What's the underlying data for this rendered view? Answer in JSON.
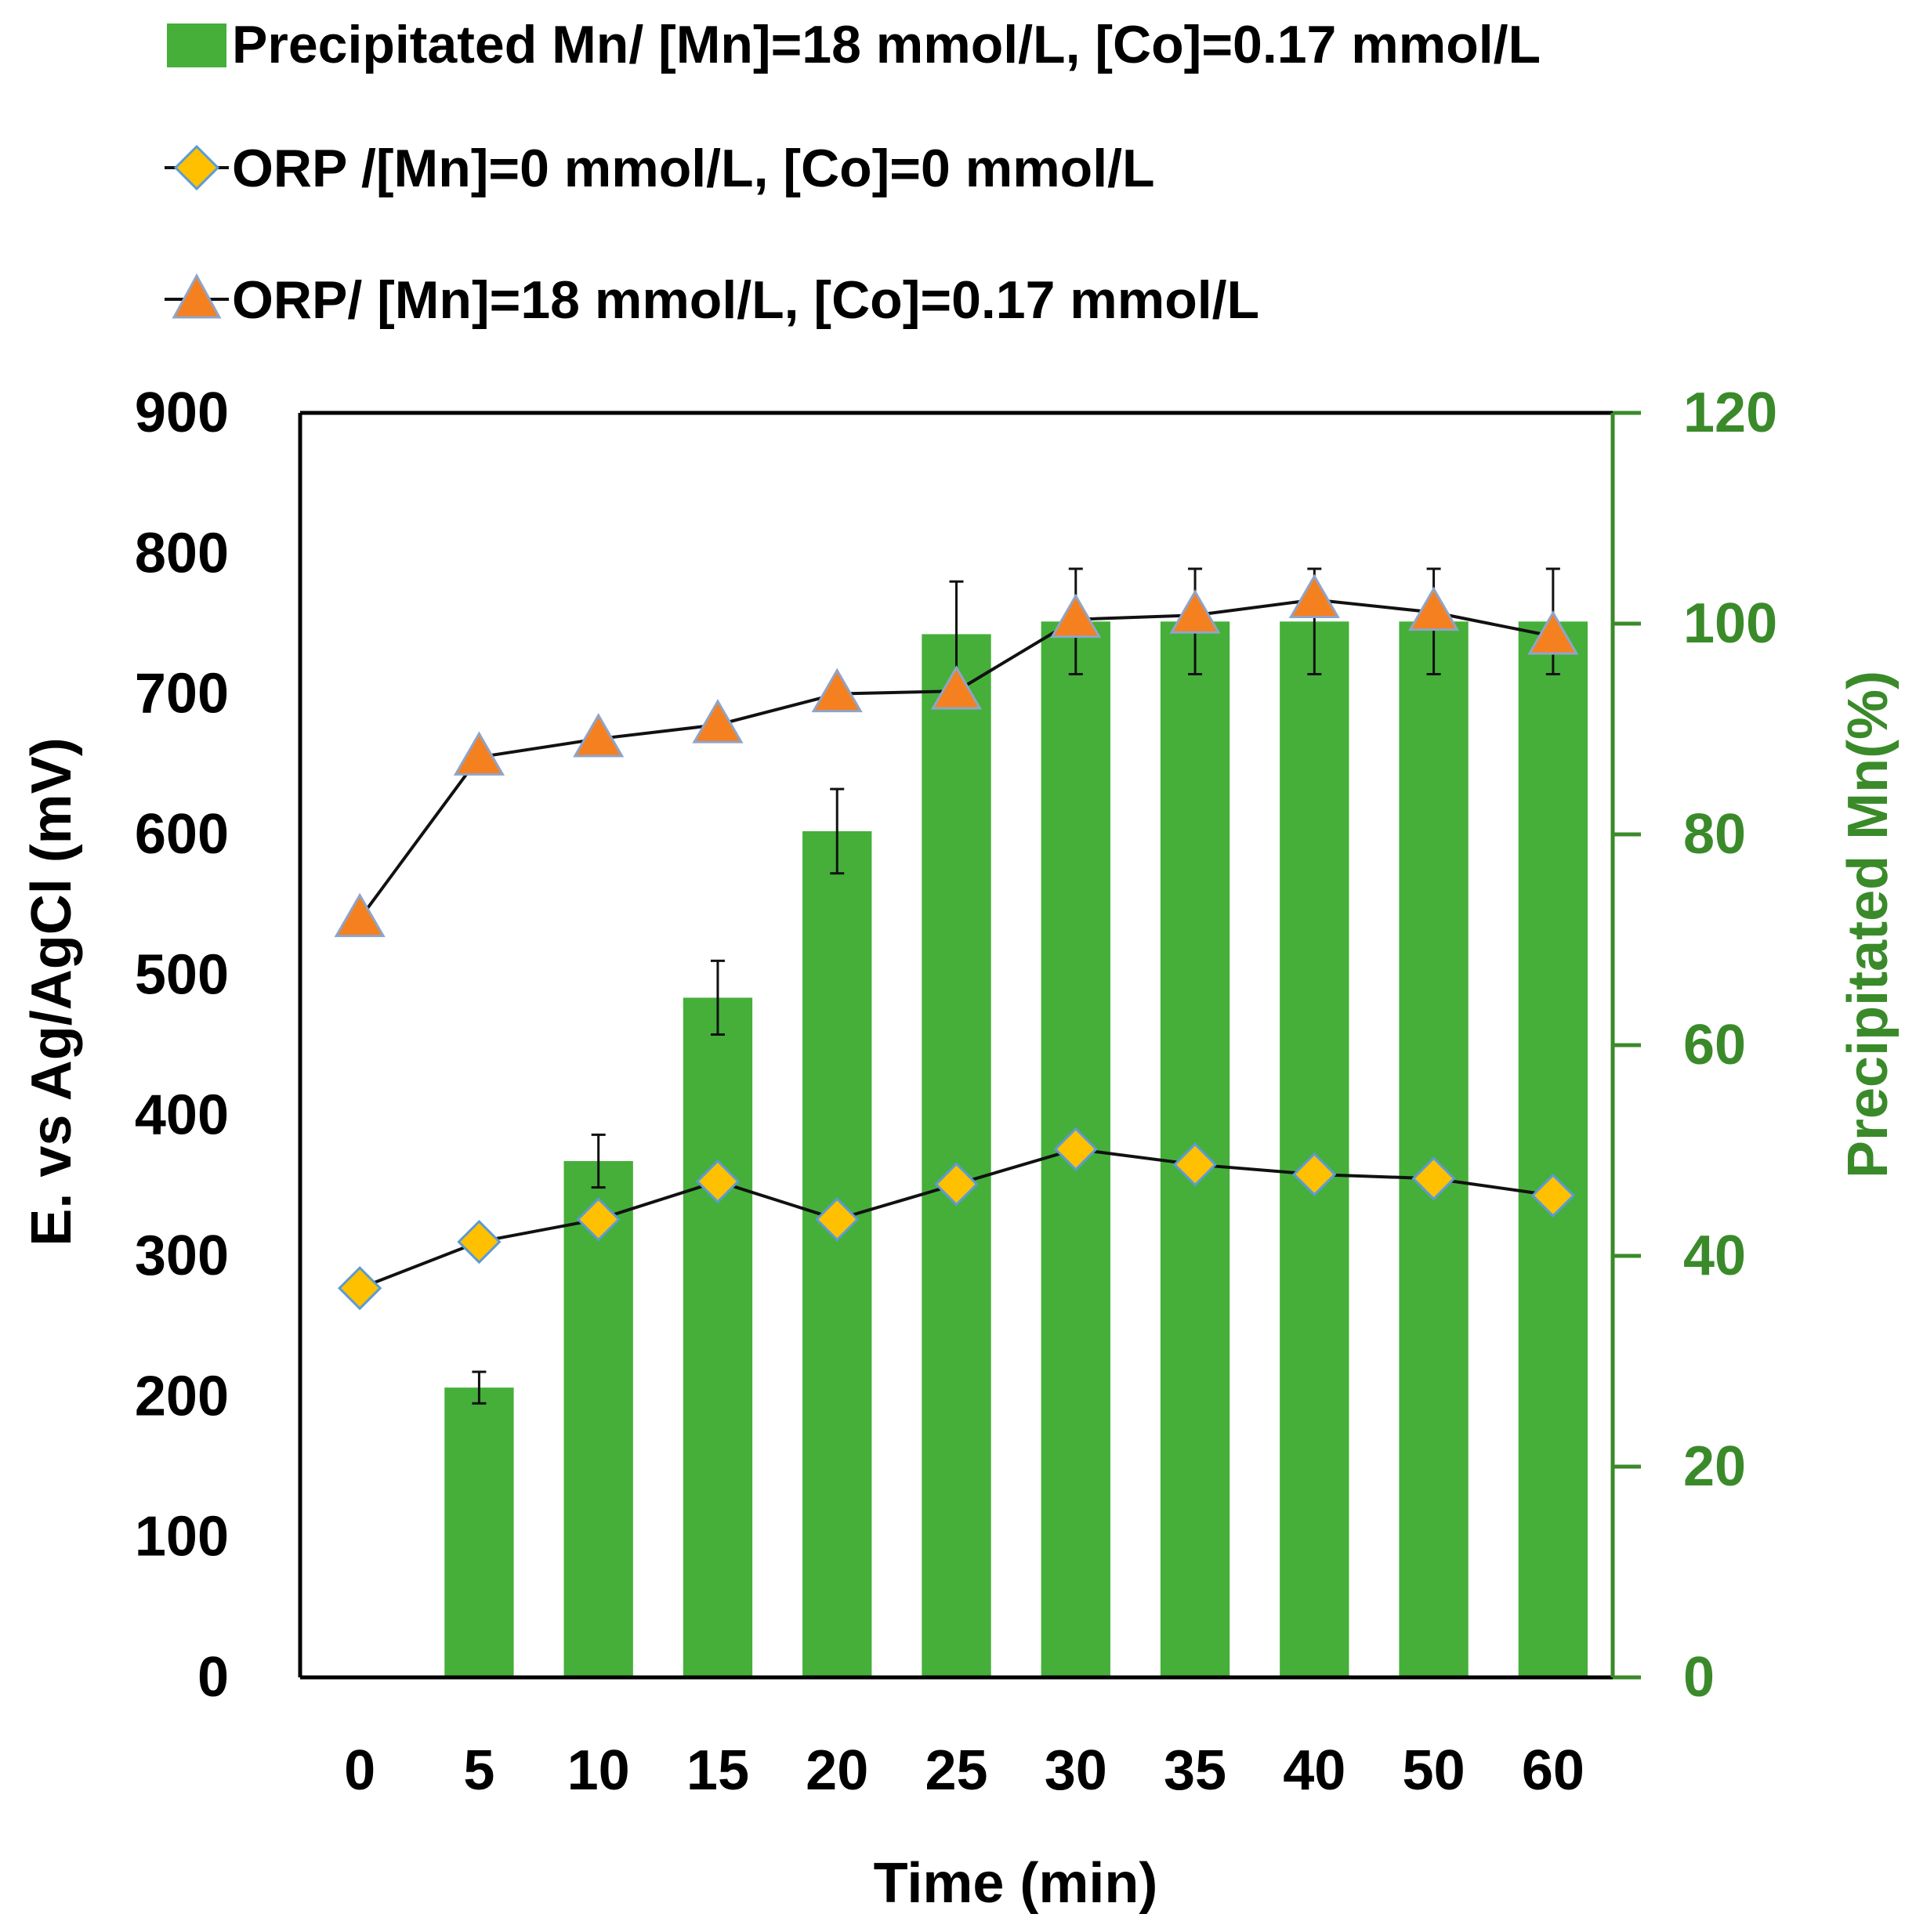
{
  "colors": {
    "bar": "#45AF3A",
    "right_axis": "#3A8A2A",
    "diamond_fill": "#FFC000",
    "diamond_stroke": "#5B9BD5",
    "triangle_fill": "#F58020",
    "triangle_stroke": "#8FA4C8",
    "line": "#111111",
    "axis": "#000000"
  },
  "legend": [
    {
      "marker": "bar",
      "label": "Precipitated Mn/ [Mn]=18 mmol/L, [Co]=0.17 mmol/L"
    },
    {
      "marker": "diamond",
      "label": "ORP /[Mn]=0 mmol/L, [Co]=0 mmol/L"
    },
    {
      "marker": "triangle",
      "label": "ORP/ [Mn]=18 mmol/L, [Co]=0.17 mmol/L"
    }
  ],
  "chart_data": {
    "type": "bar",
    "title": "",
    "xlabel": "Time (min)",
    "ylabel": "E. vs Ag/AgCl (mV)",
    "y2label": "Precipitated Mn(%)",
    "categories": [
      "0",
      "5",
      "10",
      "15",
      "20",
      "25",
      "30",
      "35",
      "40",
      "50",
      "60"
    ],
    "ylim": [
      0,
      900
    ],
    "yticks": [
      0,
      100,
      200,
      300,
      400,
      500,
      600,
      700,
      800,
      900
    ],
    "y2lim": [
      0,
      120
    ],
    "y2ticks": [
      0,
      20,
      40,
      60,
      80,
      100,
      120
    ],
    "legend_position": "top",
    "grid": false,
    "series": [
      {
        "name": "Precipitated Mn/ [Mn]=18 mmol/L, [Co]=0.17 mmol/L",
        "type": "bar",
        "axis": "right",
        "values": [
          0,
          27.5,
          49,
          64.5,
          80.3,
          99,
          100.2,
          100.2,
          100.2,
          100.2,
          100.2
        ],
        "errors": [
          0,
          1.5,
          2.5,
          3.5,
          4,
          5,
          5,
          5,
          5,
          5,
          5
        ]
      },
      {
        "name": "ORP /[Mn]=0 mmol/L, [Co]=0 mmol/L",
        "type": "line",
        "marker": "diamond",
        "axis": "left",
        "values": [
          277,
          310,
          326,
          353,
          326,
          351,
          376,
          365,
          358,
          355,
          343
        ]
      },
      {
        "name": "ORP/ [Mn]=18 mmol/L, [Co]=0.17 mmol/L",
        "type": "line",
        "marker": "triangle",
        "axis": "left",
        "values": [
          540,
          655,
          668,
          678,
          700,
          702,
          753,
          756,
          767,
          758,
          741
        ]
      }
    ]
  }
}
